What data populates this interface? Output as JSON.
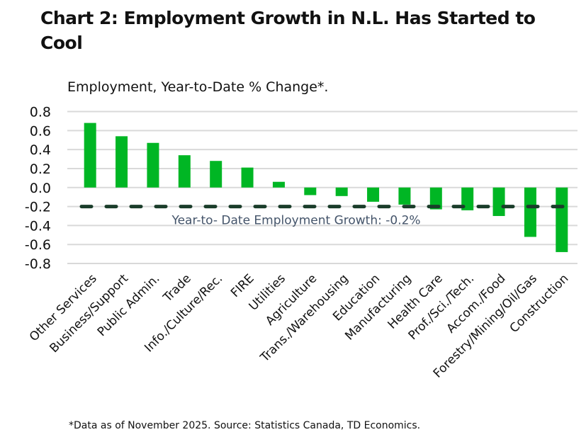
{
  "chart_data": {
    "type": "bar",
    "title": "Chart 2: Employment Growth in N.L. Has Started to Cool",
    "subtitle": "Employment, Year-to-Date % Change*.",
    "note": "*Data as of November 2025. Source: Statistics Canada, TD Economics.",
    "categories": [
      "Other Services",
      "Business/Support",
      "Public Admin.",
      "Trade",
      "Info./Culture/Rec.",
      "FIRE",
      "Utilities",
      "Agriculture",
      "Trans./Warehousing",
      "Education",
      "Manufacturing",
      "Health Care",
      "Prof./Sci./Tech.",
      "Accom./Food",
      "Forestry/Mining/Oil/Gas",
      "Construction"
    ],
    "values": [
      0.68,
      0.54,
      0.47,
      0.34,
      0.28,
      0.21,
      0.06,
      -0.08,
      -0.09,
      -0.15,
      -0.18,
      -0.23,
      -0.24,
      -0.3,
      -0.52,
      -0.68
    ],
    "ylim": [
      -0.8,
      0.8
    ],
    "yticks": [
      "0.8",
      "0.6",
      "0.4",
      "0.2",
      "0.0",
      "-0.2",
      "-0.4",
      "-0.6",
      "-0.8"
    ],
    "grid": true,
    "bar_color": "#00b624",
    "reference_line": {
      "value": -0.2,
      "label": "Year-to- Date Employment Growth: -0.2%",
      "color": "#1a3d2a"
    }
  }
}
